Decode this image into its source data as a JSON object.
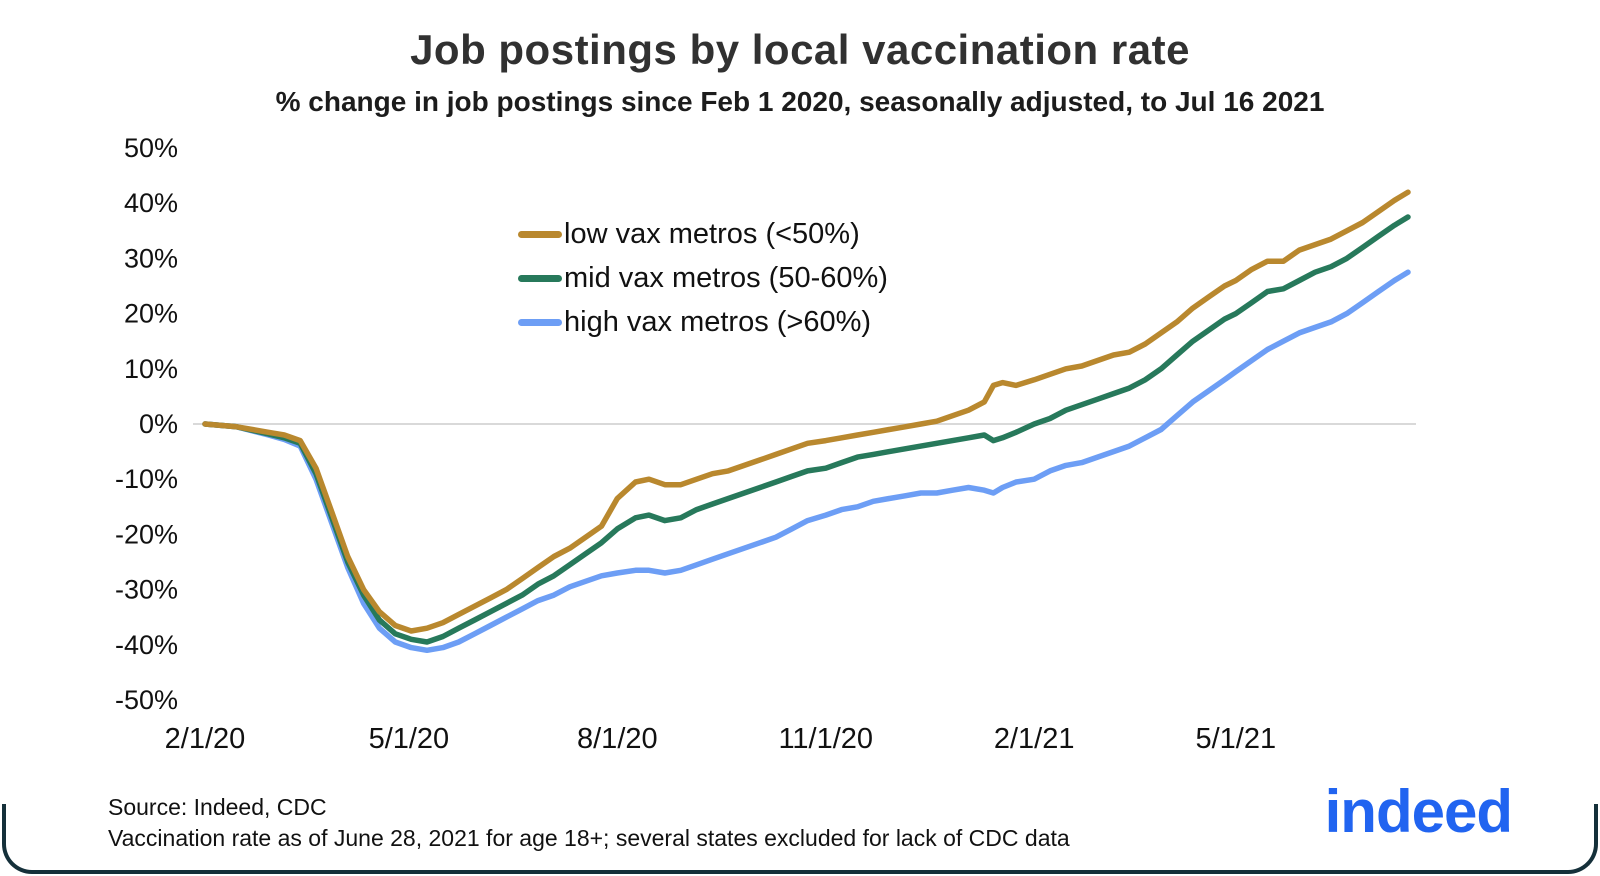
{
  "title": "Job postings by local vaccination rate",
  "subtitle": "% change in job postings since Feb 1 2020, seasonally adjusted, to Jul 16 2021",
  "footer": {
    "source": "Source: Indeed, CDC",
    "note": "Vaccination rate as of June 28, 2021 for age 18+; several states excluded for lack of CDC data"
  },
  "logo": {
    "text": "indeed",
    "color": "#2164f0"
  },
  "chart_data": {
    "type": "line",
    "title": "Job postings by local vaccination rate",
    "subtitle": "% change in job postings since Feb 1 2020, seasonally adjusted, to Jul 16 2021",
    "xlabel": "",
    "ylabel": "% change in job postings since Feb 1 2020",
    "x_unit": "days since Feb 1 2020",
    "xlim": [
      0,
      531
    ],
    "ylim": [
      -50,
      50
    ],
    "grid": "zero-line-only",
    "zero_line_color": "#d9d9d9",
    "legend_position": "upper-left-center",
    "x_ticks": [
      {
        "day": 0,
        "label": "2/1/20"
      },
      {
        "day": 90,
        "label": "5/1/20"
      },
      {
        "day": 182,
        "label": "8/1/20"
      },
      {
        "day": 274,
        "label": "11/1/20"
      },
      {
        "day": 366,
        "label": "2/1/21"
      },
      {
        "day": 455,
        "label": "5/1/21"
      }
    ],
    "y_ticks": [
      {
        "value": 50,
        "label": "50%"
      },
      {
        "value": 40,
        "label": "40%"
      },
      {
        "value": 30,
        "label": "30%"
      },
      {
        "value": 20,
        "label": "20%"
      },
      {
        "value": 10,
        "label": "10%"
      },
      {
        "value": 0,
        "label": "0%"
      },
      {
        "value": -10,
        "label": "-10%"
      },
      {
        "value": -20,
        "label": "-20%"
      },
      {
        "value": -30,
        "label": "-30%"
      },
      {
        "value": -40,
        "label": "-40%"
      },
      {
        "value": -50,
        "label": "-50%"
      }
    ],
    "x": [
      0,
      14,
      28,
      35,
      42,
      49,
      56,
      63,
      70,
      77,
      84,
      91,
      98,
      105,
      112,
      119,
      126,
      133,
      140,
      147,
      154,
      161,
      168,
      175,
      182,
      190,
      196,
      203,
      210,
      217,
      224,
      231,
      238,
      245,
      252,
      259,
      266,
      274,
      281,
      288,
      295,
      302,
      309,
      316,
      323,
      330,
      337,
      344,
      348,
      352,
      358,
      366,
      373,
      380,
      387,
      394,
      401,
      408,
      415,
      422,
      429,
      436,
      443,
      450,
      455,
      462,
      469,
      476,
      483,
      490,
      497,
      504,
      511,
      518,
      525,
      531
    ],
    "series": [
      {
        "name": "low vax metros (<50%)",
        "color": "#b9882e",
        "values": [
          0,
          -0.5,
          -1.5,
          -2,
          -3,
          -8,
          -16,
          -24,
          -30,
          -34,
          -36.5,
          -37.5,
          -37,
          -36,
          -34.5,
          -33,
          -31.5,
          -30,
          -28,
          -26,
          -24,
          -22.5,
          -20.5,
          -18.5,
          -13.5,
          -10.5,
          -10,
          -11,
          -11,
          -10,
          -9,
          -8.5,
          -7.5,
          -6.5,
          -5.5,
          -4.5,
          -3.5,
          -3,
          -2.5,
          -2,
          -1.5,
          -1,
          -0.5,
          0,
          0.5,
          1.5,
          2.5,
          4,
          7,
          7.5,
          7,
          8,
          9,
          10,
          10.5,
          11.5,
          12.5,
          13,
          14.5,
          16.5,
          18.5,
          21,
          23,
          25,
          26,
          28,
          29.5,
          29.5,
          31.5,
          32.5,
          33.5,
          35,
          36.5,
          38.5,
          40.5,
          42
        ]
      },
      {
        "name": "mid vax metros (50-60%)",
        "color": "#27795b",
        "values": [
          0,
          -0.5,
          -1.8,
          -2.5,
          -3.5,
          -9,
          -17,
          -25,
          -31,
          -35.5,
          -38,
          -39,
          -39.5,
          -38.5,
          -37,
          -35.5,
          -34,
          -32.5,
          -31,
          -29,
          -27.5,
          -25.5,
          -23.5,
          -21.5,
          -19,
          -17,
          -16.5,
          -17.5,
          -17,
          -15.5,
          -14.5,
          -13.5,
          -12.5,
          -11.5,
          -10.5,
          -9.5,
          -8.5,
          -8,
          -7,
          -6,
          -5.5,
          -5,
          -4.5,
          -4,
          -3.5,
          -3,
          -2.5,
          -2,
          -3,
          -2.5,
          -1.5,
          0,
          1,
          2.5,
          3.5,
          4.5,
          5.5,
          6.5,
          8,
          10,
          12.5,
          15,
          17,
          19,
          20,
          22,
          24,
          24.5,
          26,
          27.5,
          28.5,
          30,
          32,
          34,
          36,
          37.5
        ]
      },
      {
        "name": "high vax metros (>60%)",
        "color": "#6d9ef5",
        "values": [
          0,
          -0.5,
          -2,
          -2.8,
          -4,
          -10,
          -18,
          -26,
          -32.5,
          -37,
          -39.5,
          -40.5,
          -41,
          -40.5,
          -39.5,
          -38,
          -36.5,
          -35,
          -33.5,
          -32,
          -31,
          -29.5,
          -28.5,
          -27.5,
          -27,
          -26.5,
          -26.5,
          -27,
          -26.5,
          -25.5,
          -24.5,
          -23.5,
          -22.5,
          -21.5,
          -20.5,
          -19,
          -17.5,
          -16.5,
          -15.5,
          -15,
          -14,
          -13.5,
          -13,
          -12.5,
          -12.5,
          -12,
          -11.5,
          -12,
          -12.5,
          -11.5,
          -10.5,
          -10,
          -8.5,
          -7.5,
          -7,
          -6,
          -5,
          -4,
          -2.5,
          -1,
          1.5,
          4,
          6,
          8,
          9.5,
          11.5,
          13.5,
          15,
          16.5,
          17.5,
          18.5,
          20,
          22,
          24,
          26,
          27.5
        ]
      }
    ]
  }
}
